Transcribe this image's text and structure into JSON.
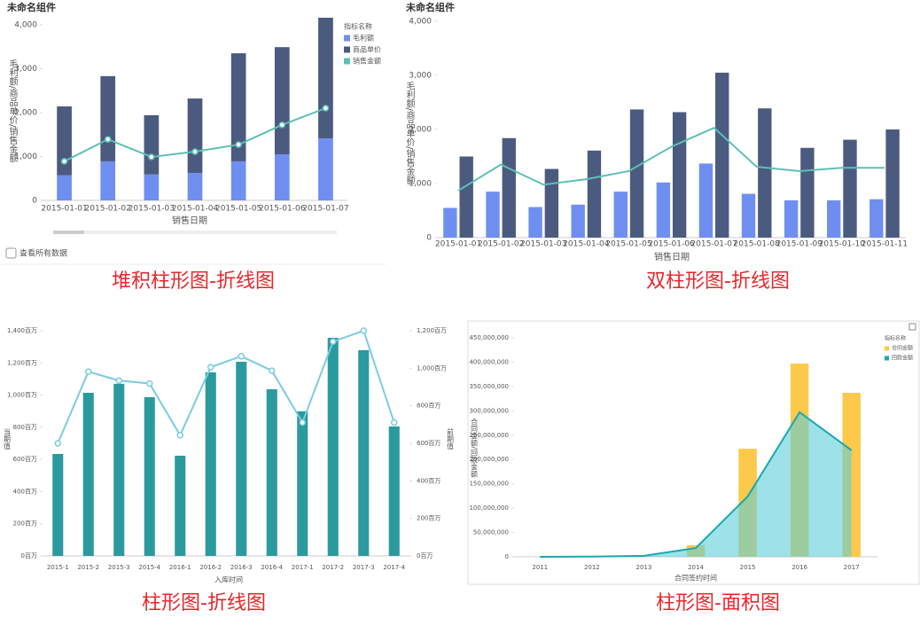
{
  "chart_data": [
    {
      "type": "bar",
      "stacked": true,
      "title": "未命名组件",
      "caption": "堆积柱形图-折线图",
      "footer_option": "查看所有数据",
      "x_label": "销售日期",
      "y_label": "毛利额/商品单价/销售金额",
      "legend_title": "指标名称",
      "legend": "top-right",
      "categories": [
        "2015-01-01",
        "2015-01-02",
        "2015-01-03",
        "2015-01-04",
        "2015-01-05",
        "2015-01-06",
        "2015-01-07"
      ],
      "series": [
        {
          "name": "毛利额",
          "color": "#6f8ff0",
          "values": [
            570,
            890,
            590,
            625,
            890,
            1050,
            1410
          ]
        },
        {
          "name": "商品单价",
          "color": "#4b5b80",
          "values": [
            1570,
            1940,
            1350,
            1695,
            2460,
            2440,
            2750
          ]
        },
        {
          "name": "销售金额",
          "type": "line",
          "marker": true,
          "color": "#5cc0b5",
          "values": [
            890,
            1390,
            990,
            1110,
            1270,
            1720,
            2100
          ]
        }
      ],
      "ylim": [
        0,
        4200
      ],
      "yticks": [
        0,
        {
          "value": 1000,
          "label": "1,000"
        },
        {
          "value": 2000,
          "label": "2,000"
        },
        {
          "value": 3000,
          "label": "3,000"
        },
        {
          "value": 4000,
          "label": "4,000"
        }
      ]
    },
    {
      "type": "bar",
      "stacked": false,
      "title": "未命名组件",
      "caption": "双柱形图-折线图",
      "x_label": "销售日期",
      "y_label": "毛利额/商品单价/销售金额",
      "categories": [
        "2015-01-01",
        "2015-01-02",
        "2015-01-03",
        "2015-01-04",
        "2015-01-05",
        "2015-01-06",
        "2015-01-07",
        "2015-01-08",
        "2015-01-09",
        "2015-01-10",
        "2015-01-11"
      ],
      "series": [
        {
          "color": "#6f8ff0",
          "values": [
            550,
            850,
            565,
            610,
            850,
            1020,
            1370,
            810,
            690,
            690,
            710
          ]
        },
        {
          "color": "#4b5b80",
          "values": [
            1500,
            1840,
            1270,
            1610,
            2370,
            2320,
            3050,
            2390,
            1660,
            1810,
            2000
          ]
        },
        {
          "type": "line",
          "marker": false,
          "color": "#5cc0b5",
          "values": [
            870,
            1350,
            980,
            1080,
            1230,
            1680,
            2030,
            1310,
            1230,
            1290,
            1290
          ]
        }
      ],
      "ylim": [
        0,
        4000
      ],
      "yticks": [
        0,
        {
          "value": 1000,
          "label": "1,000"
        },
        {
          "value": 2000,
          "label": "2,000"
        },
        {
          "value": 3000,
          "label": "3,000"
        },
        {
          "value": 4000,
          "label": "4,000"
        }
      ]
    },
    {
      "type": "bar",
      "stacked": false,
      "caption": "柱形图-折线图",
      "x_label": "入库时间",
      "y_label": "当期值",
      "y2_label": "前期值",
      "categories": [
        "2015-1",
        "2015-2",
        "2015-3",
        "2015-4",
        "2016-1",
        "2016-2",
        "2016-3",
        "2016-4",
        "2017-1",
        "2017-2",
        "2017-3",
        "2017-4"
      ],
      "series": [
        {
          "color": "#2a9a9f",
          "values": [
            634,
            1014,
            1070,
            987,
            623,
            1141,
            1207,
            1036,
            899,
            1356,
            1279,
            805
          ]
        },
        {
          "type": "line",
          "marker": true,
          "axis": "y2",
          "color": "#7ccbe0",
          "values": [
            600,
            982,
            934,
            919,
            643,
            1006,
            1064,
            987,
            711,
            1142,
            1200,
            711
          ]
        }
      ],
      "ylim": [
        0,
        1400
      ],
      "yticks": [
        {
          "value": 0,
          "label": "0百万"
        },
        {
          "value": 200,
          "label": "200百万"
        },
        {
          "value": 400,
          "label": "400百万"
        },
        {
          "value": 600,
          "label": "600百万"
        },
        {
          "value": 800,
          "label": "800百万"
        },
        {
          "value": 1000,
          "label": "1,000百万"
        },
        {
          "value": 1200,
          "label": "1,200百万"
        },
        {
          "value": 1400,
          "label": "1,400百万"
        }
      ],
      "y2lim": [
        0,
        1200
      ],
      "y2ticks": [
        {
          "value": 0,
          "label": "0百万"
        },
        {
          "value": 200,
          "label": "200百万"
        },
        {
          "value": 400,
          "label": "400百万"
        },
        {
          "value": 600,
          "label": "600百万"
        },
        {
          "value": 800,
          "label": "800百万"
        },
        {
          "value": 1000,
          "label": "1,000百万"
        },
        {
          "value": 1200,
          "label": "1,200百万"
        }
      ]
    },
    {
      "type": "bar",
      "stacked": false,
      "caption": "柱形图-面积图",
      "x_label": "合同签约时间",
      "y_label": "合同金额/回款金额",
      "legend_title": "指标名称",
      "legend": "top-right",
      "categories": [
        "2011",
        "2012",
        "2013",
        "2014",
        "2015",
        "2016",
        "2017"
      ],
      "series": [
        {
          "name": "合同金额",
          "color": "#fdc94a",
          "values": [
            0,
            0,
            0,
            24000000,
            222000000,
            397000000,
            337000000
          ]
        },
        {
          "name": "回款金额",
          "type": "area",
          "color": "#1aa8b0",
          "values": [
            0,
            500000,
            2000000,
            18000000,
            124000000,
            297000000,
            219000000
          ]
        }
      ],
      "ylim": [
        0,
        450000000
      ],
      "yticks": [
        0,
        {
          "value": 50000000,
          "label": "50,000,000"
        },
        {
          "value": 100000000,
          "label": "100,000,000"
        },
        {
          "value": 150000000,
          "label": "150,000,000"
        },
        {
          "value": 200000000,
          "label": "200,000,000"
        },
        {
          "value": 250000000,
          "label": "250,000,000"
        },
        {
          "value": 300000000,
          "label": "300,000,000"
        },
        {
          "value": 350000000,
          "label": "350,000,000"
        },
        {
          "value": 400000000,
          "label": "400,000,000"
        },
        {
          "value": 450000000,
          "label": "450,000,000"
        }
      ]
    }
  ]
}
